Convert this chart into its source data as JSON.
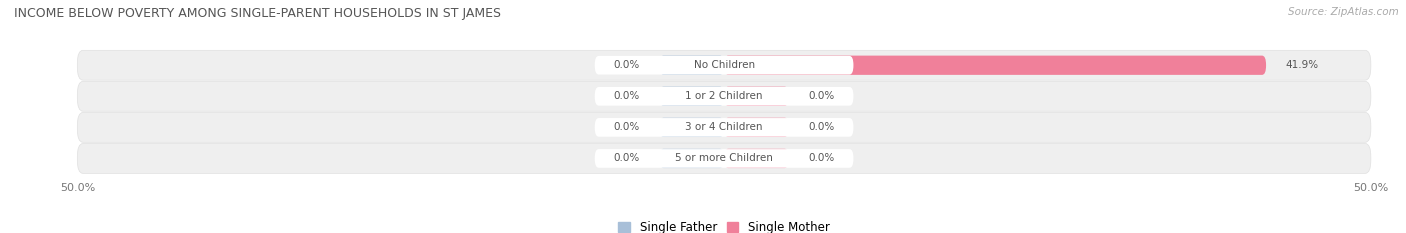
{
  "title": "INCOME BELOW POVERTY AMONG SINGLE-PARENT HOUSEHOLDS IN ST JAMES",
  "source": "Source: ZipAtlas.com",
  "categories": [
    "No Children",
    "1 or 2 Children",
    "3 or 4 Children",
    "5 or more Children"
  ],
  "single_father": [
    0.0,
    0.0,
    0.0,
    0.0
  ],
  "single_mother": [
    41.9,
    0.0,
    0.0,
    0.0
  ],
  "father_color": "#a8bfd8",
  "mother_color": "#f0809a",
  "axis_min": -50.0,
  "axis_max": 50.0,
  "axis_labels_left": "50.0%",
  "axis_labels_right": "50.0%",
  "background_color": "#ffffff",
  "row_bg_color": "#efefef",
  "row_bg_edge_color": "#e0e0e0",
  "label_pill_color": "#f5f5f5",
  "title_color": "#555555",
  "value_color": "#555555",
  "source_color": "#aaaaaa"
}
